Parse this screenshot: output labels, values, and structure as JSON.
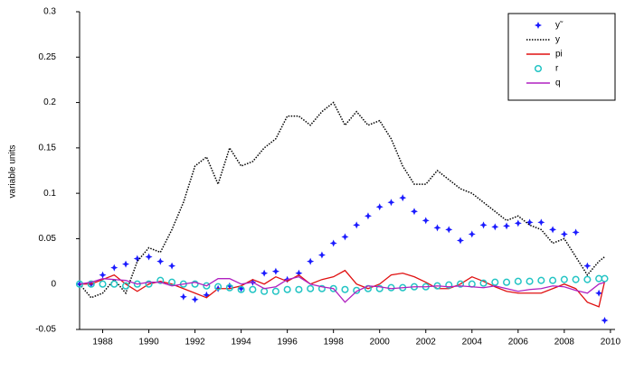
{
  "chart_data": {
    "type": "line",
    "ylabel": "variable units",
    "x": [
      1987,
      1987.5,
      1988,
      1988.5,
      1989,
      1989.5,
      1990,
      1990.5,
      1991,
      1991.5,
      1992,
      1992.5,
      1993,
      1993.5,
      1994,
      1994.5,
      1995,
      1995.5,
      1996,
      1996.5,
      1997,
      1997.5,
      1998,
      1998.5,
      1999,
      1999.5,
      2000,
      2000.5,
      2001,
      2001.5,
      2002,
      2002.5,
      2003,
      2003.5,
      2004,
      2004.5,
      2005,
      2005.5,
      2006,
      2006.5,
      2007,
      2007.5,
      2008,
      2008.5,
      2009,
      2009.5,
      2009.75
    ],
    "xlim": [
      1987,
      2010.2
    ],
    "xticks": [
      1988,
      1990,
      1992,
      1994,
      1996,
      1998,
      2000,
      2002,
      2004,
      2006,
      2008,
      2010
    ],
    "ylim": [
      -0.05,
      0.3
    ],
    "yticks": [
      -0.05,
      0,
      0.05,
      0.1,
      0.15,
      0.2,
      0.25,
      0.3
    ],
    "legend": "upper right",
    "series": [
      {
        "name": "y˜",
        "color": "#1a1aff",
        "style": "stars",
        "values": [
          0,
          0,
          0.01,
          0.018,
          0.022,
          0.028,
          0.03,
          0.025,
          0.02,
          -0.014,
          -0.017,
          -0.012,
          -0.005,
          -0.002,
          -0.005,
          0.002,
          0.012,
          0.014,
          0.005,
          0.012,
          0.025,
          0.032,
          0.045,
          0.052,
          0.065,
          0.075,
          0.085,
          0.09,
          0.095,
          0.08,
          0.07,
          0.062,
          0.06,
          0.048,
          0.055,
          0.065,
          0.063,
          0.064,
          0.067,
          0.068,
          0.068,
          0.06,
          0.055,
          0.057,
          0.02,
          -0.01,
          -0.04
        ]
      },
      {
        "name": "y",
        "color": "#000000",
        "style": "dotted",
        "values": [
          0,
          -0.015,
          -0.01,
          0.005,
          -0.01,
          0.025,
          0.04,
          0.035,
          0.06,
          0.09,
          0.13,
          0.14,
          0.11,
          0.15,
          0.13,
          0.135,
          0.15,
          0.16,
          0.185,
          0.185,
          0.175,
          0.19,
          0.2,
          0.175,
          0.19,
          0.175,
          0.18,
          0.16,
          0.13,
          0.11,
          0.11,
          0.125,
          0.115,
          0.105,
          0.1,
          0.09,
          0.08,
          0.07,
          0.075,
          0.065,
          0.06,
          0.045,
          0.05,
          0.03,
          0.01,
          0.025,
          0.03
        ]
      },
      {
        "name": "pi",
        "color": "#e01010",
        "style": "solid",
        "values": [
          0,
          0,
          0.005,
          0.01,
          0,
          -0.008,
          0,
          0.003,
          0,
          -0.005,
          -0.01,
          -0.015,
          -0.005,
          -0.005,
          -0.002,
          0.005,
          0,
          0.008,
          0.003,
          0.01,
          0,
          0.005,
          0.008,
          0.015,
          0,
          -0.005,
          0,
          0.01,
          0.012,
          0.008,
          0.002,
          -0.005,
          -0.005,
          0,
          0.008,
          0.003,
          -0.003,
          -0.008,
          -0.01,
          -0.01,
          -0.01,
          -0.005,
          0,
          -0.005,
          -0.02,
          -0.025,
          0.003
        ]
      },
      {
        "name": "r",
        "color": "#22c4c4",
        "style": "circles",
        "values": [
          0,
          0,
          0,
          0,
          -0.002,
          0,
          0,
          0.004,
          0.002,
          0,
          0,
          -0.002,
          -0.003,
          -0.004,
          -0.006,
          -0.006,
          -0.008,
          -0.008,
          -0.006,
          -0.006,
          -0.005,
          -0.005,
          -0.005,
          -0.006,
          -0.007,
          -0.005,
          -0.005,
          -0.004,
          -0.004,
          -0.003,
          -0.003,
          -0.002,
          -0.001,
          0,
          0,
          0.001,
          0.002,
          0.002,
          0.003,
          0.003,
          0.004,
          0.004,
          0.005,
          0.005,
          0.005,
          0.006,
          0.006
        ]
      },
      {
        "name": "q",
        "color": "#b020c0",
        "style": "solid",
        "values": [
          0,
          0.002,
          0.006,
          0.005,
          0.004,
          0,
          0.002,
          0.002,
          -0.002,
          0,
          0.002,
          -0.002,
          0.006,
          0.006,
          0,
          0.002,
          -0.005,
          -0.003,
          0.005,
          0.008,
          0,
          -0.003,
          -0.005,
          -0.02,
          -0.008,
          -0.002,
          -0.003,
          -0.005,
          -0.004,
          -0.003,
          -0.003,
          -0.002,
          -0.003,
          -0.002,
          -0.003,
          -0.004,
          -0.002,
          -0.005,
          -0.008,
          -0.006,
          -0.005,
          -0.002,
          -0.003,
          -0.007,
          -0.01,
          0,
          0.002
        ]
      }
    ]
  }
}
